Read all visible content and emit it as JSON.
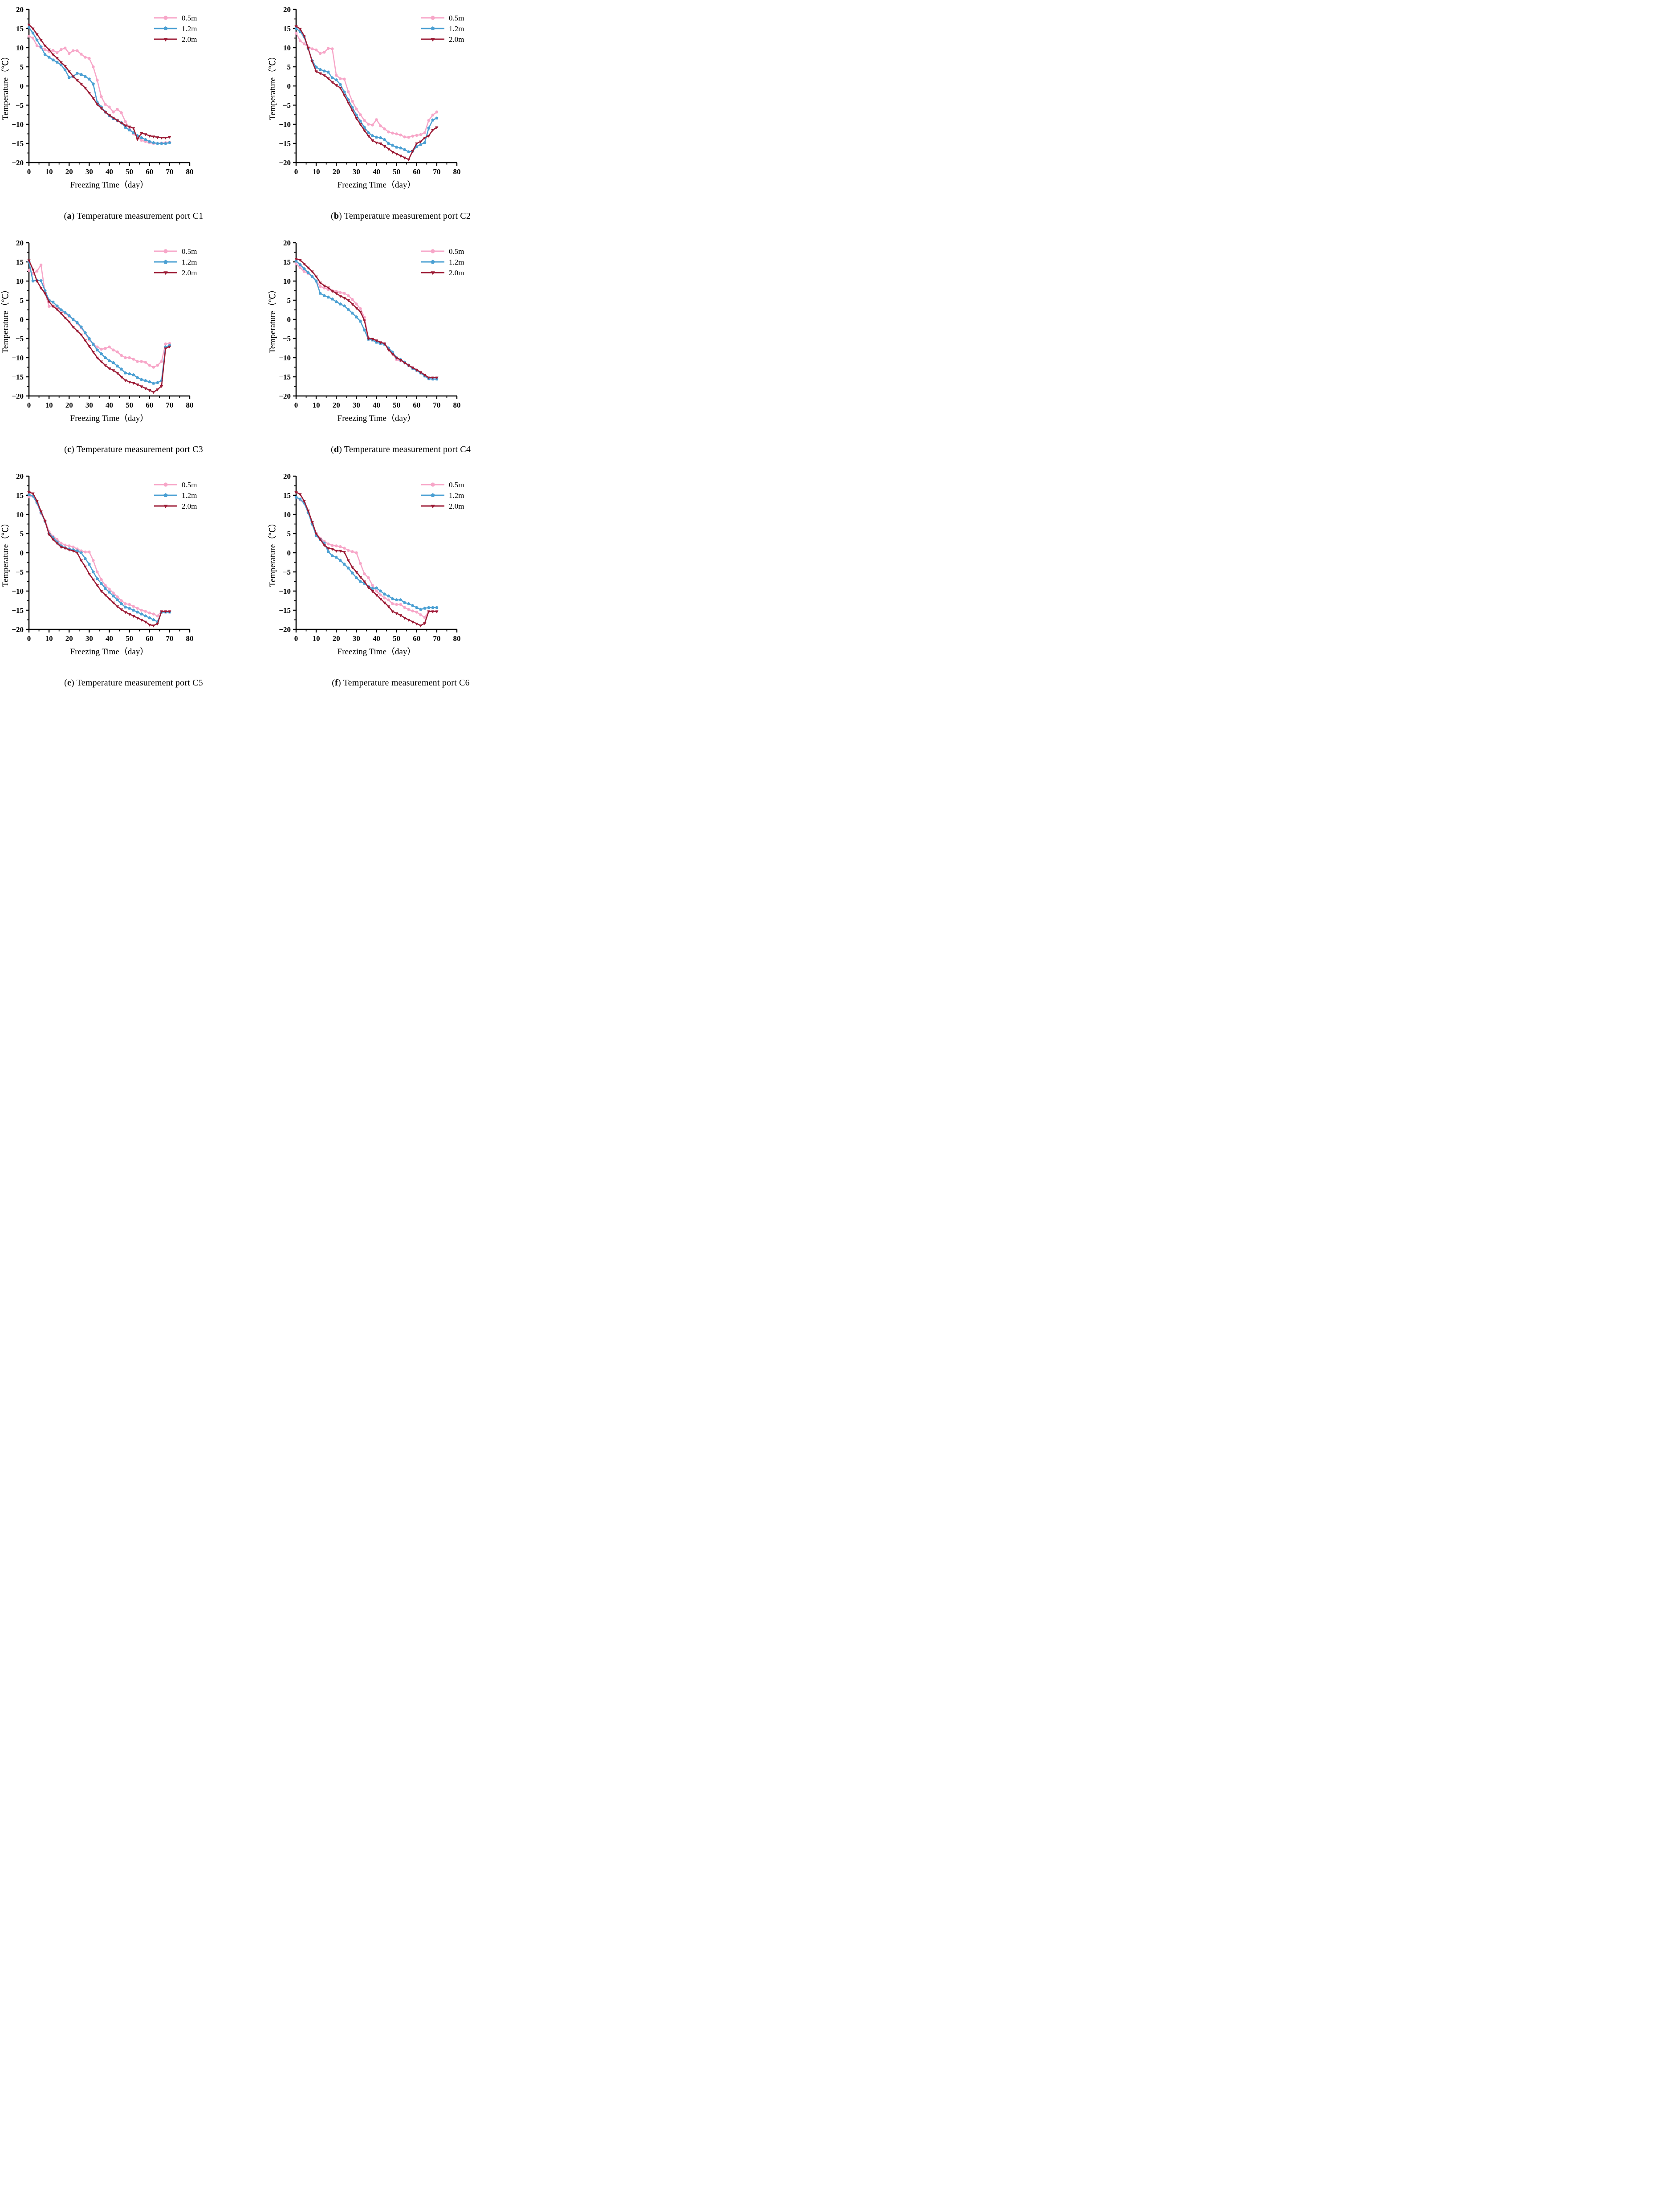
{
  "page": {
    "background": "#ffffff"
  },
  "chart_common": {
    "type": "line",
    "xlabel": "Freezing Time（day）",
    "ylabel": "Temperature（℃）",
    "xlim": [
      0,
      80
    ],
    "ylim": [
      -20,
      20
    ],
    "xticks": [
      0,
      10,
      20,
      30,
      40,
      50,
      60,
      70,
      80
    ],
    "yticks": [
      -20,
      -15,
      -10,
      -5,
      0,
      5,
      10,
      15,
      20
    ],
    "x_minor_step": 5,
    "y_minor_step": 2.5,
    "grid": "off",
    "legend_position": "top-right",
    "axis_color": "#000000",
    "x_start": 0,
    "x_step": 2,
    "series_styles": [
      {
        "name": "0.5m",
        "color": "#F7A6C8",
        "marker": "circle"
      },
      {
        "name": "1.2m",
        "color": "#4BA0D3",
        "marker": "pentagon"
      },
      {
        "name": "2.0m",
        "color": "#9C1B35",
        "marker": "triangle_down"
      }
    ]
  },
  "chart_data": [
    {
      "id": "C1",
      "caption": {
        "prefix": "(",
        "letter": "a",
        "suffix": ") ",
        "text": "Temperature measurement port C1"
      },
      "series": {
        "0.5m": [
          13.0,
          12.5,
          10.5,
          10.0,
          9.5,
          9.0,
          9.3,
          8.7,
          9.5,
          9.9,
          8.5,
          9.2,
          9.2,
          8.3,
          7.5,
          7.2,
          5.0,
          1.5,
          -2.8,
          -4.8,
          -5.5,
          -6.8,
          -6.1,
          -7.0,
          -9.3,
          -11.0,
          -12.5,
          -13.3,
          -14.2,
          -14.5,
          -14.8,
          -15.0,
          -15.0,
          -14.9,
          -14.8,
          -14.7
        ],
        "1.2m": [
          15.3,
          13.8,
          12.0,
          10.2,
          8.2,
          7.5,
          6.8,
          6.2,
          5.5,
          4.2,
          2.2,
          2.5,
          3.3,
          3.0,
          2.5,
          1.8,
          0.5,
          -4.3,
          -5.5,
          -6.8,
          -7.8,
          -8.5,
          -9.0,
          -9.6,
          -10.8,
          -11.5,
          -12.2,
          -13.0,
          -13.5,
          -14.0,
          -14.5,
          -14.8,
          -15.0,
          -15.0,
          -15.0,
          -14.8
        ],
        "2.0m": [
          16.0,
          15.0,
          13.5,
          12.0,
          10.5,
          9.5,
          8.2,
          7.3,
          6.2,
          5.2,
          3.8,
          2.5,
          1.5,
          0.5,
          -0.5,
          -1.8,
          -3.2,
          -4.8,
          -5.8,
          -6.8,
          -7.6,
          -8.3,
          -9.0,
          -9.6,
          -10.3,
          -10.6,
          -11.0,
          -13.9,
          -12.3,
          -12.6,
          -13.0,
          -13.2,
          -13.4,
          -13.5,
          -13.5,
          -13.3
        ]
      }
    },
    {
      "id": "C2",
      "caption": {
        "prefix": "(",
        "letter": "b",
        "suffix": ") ",
        "text": "Temperature measurement port C2"
      },
      "series": {
        "0.5m": [
          13.8,
          11.8,
          11.0,
          10.2,
          9.7,
          9.4,
          8.5,
          8.8,
          9.8,
          9.7,
          2.8,
          1.9,
          1.8,
          -1.5,
          -4.0,
          -6.0,
          -7.5,
          -9.0,
          -10.0,
          -10.2,
          -8.8,
          -10.4,
          -11.2,
          -12.0,
          -12.3,
          -12.5,
          -12.8,
          -13.3,
          -13.4,
          -13.1,
          -12.9,
          -12.7,
          -12.2,
          -9.0,
          -7.6,
          -6.8
        ],
        "1.2m": [
          15.0,
          14.2,
          12.8,
          9.8,
          6.6,
          4.9,
          4.3,
          3.9,
          3.6,
          2.1,
          1.6,
          0.4,
          -1.6,
          -3.6,
          -5.6,
          -7.6,
          -9.2,
          -10.8,
          -12.2,
          -13.0,
          -13.4,
          -13.5,
          -14.0,
          -15.0,
          -15.5,
          -16.0,
          -16.2,
          -16.6,
          -17.2,
          -17.0,
          -15.8,
          -15.3,
          -14.8,
          -11.0,
          -8.9,
          -8.4
        ],
        "2.0m": [
          15.6,
          14.9,
          13.1,
          9.9,
          6.4,
          3.8,
          3.3,
          2.8,
          2.0,
          1.0,
          0.2,
          -0.5,
          -2.4,
          -4.4,
          -6.4,
          -8.4,
          -10.0,
          -11.6,
          -13.0,
          -14.2,
          -14.8,
          -15.0,
          -15.7,
          -16.4,
          -17.2,
          -17.7,
          -18.2,
          -18.7,
          -19.2,
          -17.0,
          -15.0,
          -14.5,
          -13.5,
          -13.0,
          -11.5,
          -10.8
        ]
      }
    },
    {
      "id": "C3",
      "caption": {
        "prefix": "(",
        "letter": "c",
        "suffix": ") ",
        "text": "Temperature measurement port C3"
      },
      "series": {
        "0.5m": [
          12.8,
          12.0,
          12.6,
          14.2,
          7.0,
          3.4,
          3.5,
          3.0,
          2.4,
          1.6,
          0.8,
          0.0,
          -1.0,
          -2.2,
          -3.6,
          -5.4,
          -6.4,
          -7.2,
          -7.8,
          -7.6,
          -7.2,
          -8.0,
          -8.5,
          -9.4,
          -10.0,
          -10.0,
          -10.4,
          -11.0,
          -11.0,
          -11.2,
          -12.0,
          -12.5,
          -12.0,
          -11.0,
          -6.4,
          -6.3
        ],
        "1.2m": [
          15.0,
          10.0,
          10.2,
          10.1,
          7.5,
          5.0,
          4.5,
          3.5,
          2.5,
          1.8,
          1.0,
          0.0,
          -0.8,
          -2.0,
          -3.5,
          -5.0,
          -6.5,
          -8.0,
          -9.0,
          -10.0,
          -10.8,
          -11.3,
          -12.2,
          -13.0,
          -14.0,
          -14.2,
          -14.5,
          -15.2,
          -15.7,
          -16.0,
          -16.3,
          -16.7,
          -16.5,
          -16.0,
          -7.2,
          -6.8
        ],
        "2.0m": [
          15.4,
          13.0,
          10.0,
          8.2,
          6.8,
          4.6,
          3.4,
          2.6,
          1.6,
          0.4,
          -0.6,
          -2.0,
          -3.0,
          -4.0,
          -5.5,
          -7.0,
          -8.5,
          -10.0,
          -11.0,
          -12.0,
          -12.8,
          -13.3,
          -14.0,
          -15.0,
          -15.9,
          -16.3,
          -16.6,
          -17.0,
          -17.5,
          -18.0,
          -18.5,
          -19.0,
          -18.3,
          -17.4,
          -7.6,
          -7.1
        ]
      }
    },
    {
      "id": "C4",
      "caption": {
        "prefix": "(",
        "letter": "d",
        "suffix": ") ",
        "text": "Temperature measurement port C4"
      },
      "series": {
        "0.5m": [
          14.5,
          13.5,
          12.5,
          12.0,
          11.2,
          10.0,
          8.6,
          8.2,
          7.8,
          7.5,
          7.3,
          7.0,
          6.8,
          6.2,
          5.2,
          4.0,
          2.8,
          0.5,
          -5.0,
          -5.3,
          -5.6,
          -6.0,
          -6.3,
          -7.8,
          -9.0,
          -10.5,
          -10.8,
          -11.3,
          -12.0,
          -12.6,
          -13.2,
          -13.8,
          -14.6,
          -15.3,
          -15.3,
          -15.3
        ],
        "1.2m": [
          15.2,
          14.3,
          13.2,
          12.2,
          11.2,
          10.0,
          6.8,
          6.2,
          5.8,
          5.3,
          4.6,
          4.0,
          3.5,
          2.6,
          1.6,
          0.6,
          -0.5,
          -2.8,
          -5.2,
          -5.4,
          -6.0,
          -6.3,
          -6.5,
          -7.5,
          -8.6,
          -10.0,
          -10.5,
          -11.2,
          -12.0,
          -12.8,
          -13.3,
          -14.0,
          -14.8,
          -15.5,
          -15.6,
          -15.6
        ],
        "2.0m": [
          15.8,
          15.5,
          14.5,
          13.5,
          12.5,
          11.2,
          9.6,
          8.8,
          8.3,
          7.4,
          6.8,
          6.1,
          5.6,
          5.0,
          4.0,
          3.0,
          2.0,
          -0.3,
          -5.0,
          -5.1,
          -5.5,
          -6.0,
          -6.3,
          -7.9,
          -9.0,
          -10.0,
          -10.6,
          -11.3,
          -12.0,
          -12.6,
          -13.2,
          -13.8,
          -14.5,
          -15.2,
          -15.2,
          -15.2
        ]
      }
    },
    {
      "id": "C5",
      "caption": {
        "prefix": "(",
        "letter": "e",
        "suffix": ") ",
        "text": "Temperature measurement port C5"
      },
      "series": {
        "0.5m": [
          14.6,
          14.8,
          13.0,
          10.3,
          8.5,
          5.5,
          4.3,
          3.5,
          2.5,
          2.0,
          1.8,
          1.5,
          1.0,
          0.5,
          0.2,
          0.2,
          -2.0,
          -5.0,
          -7.0,
          -8.5,
          -9.5,
          -10.5,
          -11.5,
          -12.5,
          -13.3,
          -13.5,
          -14.0,
          -14.5,
          -15.0,
          -15.3,
          -15.7,
          -16.0,
          -16.5,
          -15.3,
          -15.3,
          -15.3
        ],
        "1.2m": [
          15.2,
          14.8,
          13.0,
          10.5,
          8.2,
          5.0,
          4.0,
          2.8,
          1.8,
          1.3,
          1.0,
          0.8,
          0.5,
          0.0,
          -1.5,
          -3.0,
          -5.0,
          -6.8,
          -8.0,
          -9.3,
          -10.3,
          -11.3,
          -12.3,
          -13.3,
          -14.2,
          -14.5,
          -15.0,
          -15.5,
          -16.0,
          -16.5,
          -17.0,
          -17.5,
          -18.0,
          -15.5,
          -15.5,
          -15.5
        ],
        "2.0m": [
          15.8,
          15.5,
          13.5,
          10.8,
          8.3,
          4.8,
          3.5,
          2.5,
          1.5,
          1.2,
          0.8,
          0.5,
          0.0,
          -2.0,
          -3.6,
          -5.5,
          -7.0,
          -8.5,
          -10.0,
          -11.0,
          -12.0,
          -13.0,
          -14.0,
          -14.8,
          -15.5,
          -16.0,
          -16.5,
          -17.0,
          -17.5,
          -18.0,
          -18.8,
          -19.0,
          -18.5,
          -15.3,
          -15.3,
          -15.3
        ]
      }
    },
    {
      "id": "C6",
      "caption": {
        "prefix": "(",
        "letter": "f",
        "suffix": ") ",
        "text": "Temperature measurement port C6"
      },
      "series": {
        "0.5m": [
          14.5,
          13.8,
          13.0,
          10.5,
          8.0,
          5.0,
          3.8,
          3.0,
          2.3,
          1.9,
          1.8,
          1.6,
          1.2,
          0.6,
          0.3,
          0.0,
          -2.8,
          -5.5,
          -6.5,
          -8.5,
          -10.0,
          -11.0,
          -11.8,
          -12.3,
          -13.3,
          -13.5,
          -13.5,
          -14.3,
          -14.8,
          -15.2,
          -15.5,
          -16.2,
          -16.9,
          -15.3,
          -15.3,
          -15.3
        ],
        "1.2m": [
          14.5,
          14.0,
          13.0,
          10.5,
          7.5,
          4.5,
          3.5,
          2.5,
          0.3,
          -0.8,
          -1.2,
          -2.0,
          -3.0,
          -4.0,
          -5.3,
          -6.5,
          -7.5,
          -8.0,
          -8.8,
          -9.3,
          -9.2,
          -10.0,
          -10.8,
          -11.3,
          -12.0,
          -12.3,
          -12.3,
          -13.0,
          -13.3,
          -13.8,
          -14.3,
          -14.8,
          -14.5,
          -14.3,
          -14.3,
          -14.3
        ],
        "2.0m": [
          15.8,
          15.3,
          13.5,
          11.0,
          8.0,
          5.0,
          3.5,
          2.0,
          1.2,
          1.0,
          0.5,
          0.5,
          0.2,
          -2.0,
          -3.8,
          -5.0,
          -6.3,
          -7.5,
          -9.0,
          -10.0,
          -11.0,
          -12.0,
          -13.0,
          -14.0,
          -15.3,
          -15.8,
          -16.3,
          -17.0,
          -17.5,
          -18.0,
          -18.5,
          -19.0,
          -18.4,
          -15.3,
          -15.3,
          -15.3
        ]
      }
    }
  ]
}
